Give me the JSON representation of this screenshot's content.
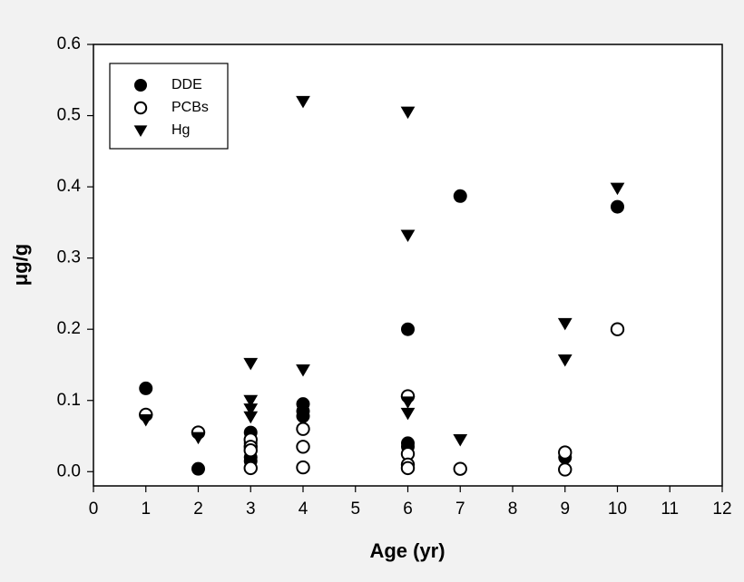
{
  "chart_data": {
    "type": "scatter",
    "x_label": "Age (yr)",
    "y_label": "μg/g",
    "xlim": [
      0,
      12
    ],
    "xticks": [
      0,
      1,
      2,
      3,
      4,
      5,
      6,
      7,
      8,
      9,
      10,
      11,
      12
    ],
    "ylim": [
      -0.02,
      0.6
    ],
    "yticks": [
      {
        "value": 0,
        "label": "0.0"
      },
      0.1,
      0.2,
      0.3,
      0.4,
      0.5,
      0.6
    ],
    "legend": "upper left",
    "grid": false,
    "series": [
      {
        "name": "DDE",
        "marker": "filled-circle",
        "color": "#000000",
        "x": [
          1,
          2,
          3,
          3,
          3,
          3,
          4,
          4,
          4,
          6,
          6,
          6,
          7,
          9,
          10
        ],
        "values": [
          0.117,
          0.004,
          0.055,
          0.04,
          0.02,
          0.015,
          0.095,
          0.085,
          0.078,
          0.2,
          0.04,
          0.035,
          0.387,
          0.02,
          0.372
        ]
      },
      {
        "name": "PCBs",
        "marker": "open-circle",
        "color": "#000000",
        "x": [
          1,
          2,
          3,
          3,
          3,
          3,
          4,
          4,
          4,
          6,
          6,
          6,
          6,
          7,
          9,
          9,
          10
        ],
        "values": [
          0.08,
          0.055,
          0.045,
          0.035,
          0.03,
          0.005,
          0.06,
          0.035,
          0.006,
          0.106,
          0.025,
          0.01,
          0.005,
          0.004,
          0.027,
          0.003,
          0.2
        ]
      },
      {
        "name": "Hg",
        "marker": "triangle-down",
        "color": "#000000",
        "x": [
          1,
          2,
          3,
          3,
          3,
          3,
          4,
          4,
          6,
          6,
          6,
          6,
          7,
          9,
          9,
          10
        ],
        "values": [
          0.073,
          0.048,
          0.152,
          0.1,
          0.088,
          0.077,
          0.52,
          0.143,
          0.505,
          0.332,
          0.098,
          0.082,
          0.045,
          0.208,
          0.157,
          0.398
        ]
      }
    ]
  }
}
